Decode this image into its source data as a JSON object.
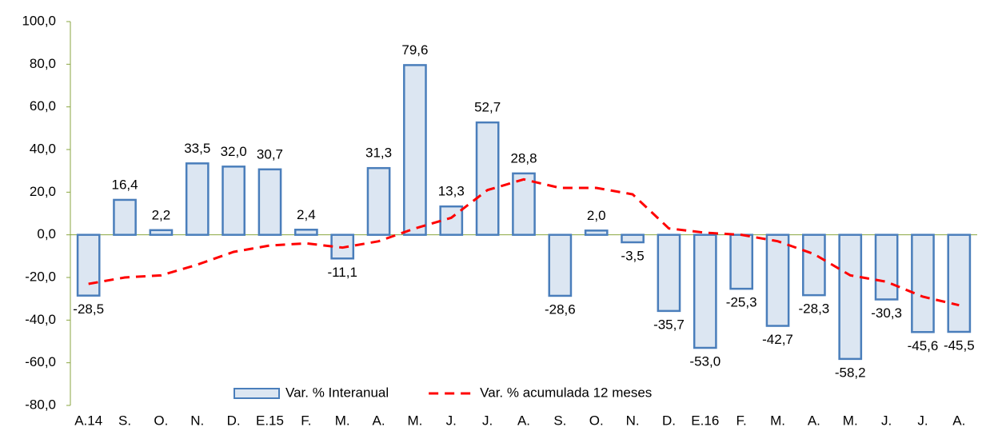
{
  "chart_data": {
    "type": "bar",
    "categories": [
      "A.14",
      "S.",
      "O.",
      "N.",
      "D.",
      "E.15",
      "F.",
      "M.",
      "A.",
      "M.",
      "J.",
      "J.",
      "A.",
      "S.",
      "O.",
      "N.",
      "D.",
      "E.16",
      "F.",
      "M.",
      "A.",
      "M.",
      "J.",
      "J.",
      "A."
    ],
    "series": [
      {
        "name": "Var. % Interanual",
        "type": "bar",
        "color": "#dce6f2",
        "edge_color": "#4a7ebb",
        "values": [
          -28.5,
          16.4,
          2.2,
          33.5,
          32.0,
          30.7,
          2.4,
          -11.1,
          31.3,
          79.6,
          13.3,
          52.7,
          28.8,
          -28.6,
          2.0,
          -3.5,
          -35.7,
          -53.0,
          -25.3,
          -42.7,
          -28.3,
          -58.2,
          -30.3,
          -45.6,
          -45.5
        ],
        "value_labels": [
          "-28,5",
          "16,4",
          "2,2",
          "33,5",
          "32,0",
          "30,7",
          "2,4",
          "-11,1",
          "31,3",
          "79,6",
          "13,3",
          "52,7",
          "28,8",
          "-28,6",
          "2,0",
          "-3,5",
          "-35,7",
          "-53,0",
          "-25,3",
          "-42,7",
          "-28,3",
          "-58,2",
          "-30,3",
          "-45,6",
          "-45,5"
        ]
      },
      {
        "name": "Var. % acumulada 12 meses",
        "type": "line",
        "color": "#ff0000",
        "dashed": true,
        "values": [
          -23,
          -20,
          -19,
          -14,
          -8,
          -5,
          -4,
          -6,
          -3,
          3,
          8,
          21,
          26,
          22,
          22,
          19,
          3,
          1,
          0,
          -3,
          -9,
          -19,
          -22,
          -29,
          -33
        ]
      }
    ],
    "ylim": [
      -80,
      100
    ],
    "yticks": [
      {
        "value": -80,
        "label": "-80,0"
      },
      {
        "value": -60,
        "label": "-60,0"
      },
      {
        "value": -40,
        "label": "-40,0"
      },
      {
        "value": -20,
        "label": "-20,0"
      },
      {
        "value": 0,
        "label": "0,0"
      },
      {
        "value": 20,
        "label": "20,0"
      },
      {
        "value": 40,
        "label": "40,0"
      },
      {
        "value": 60,
        "label": "60,0"
      },
      {
        "value": 80,
        "label": "80,0"
      },
      {
        "value": 100,
        "label": "100,0"
      }
    ],
    "grid": false,
    "legend": "bottom"
  }
}
